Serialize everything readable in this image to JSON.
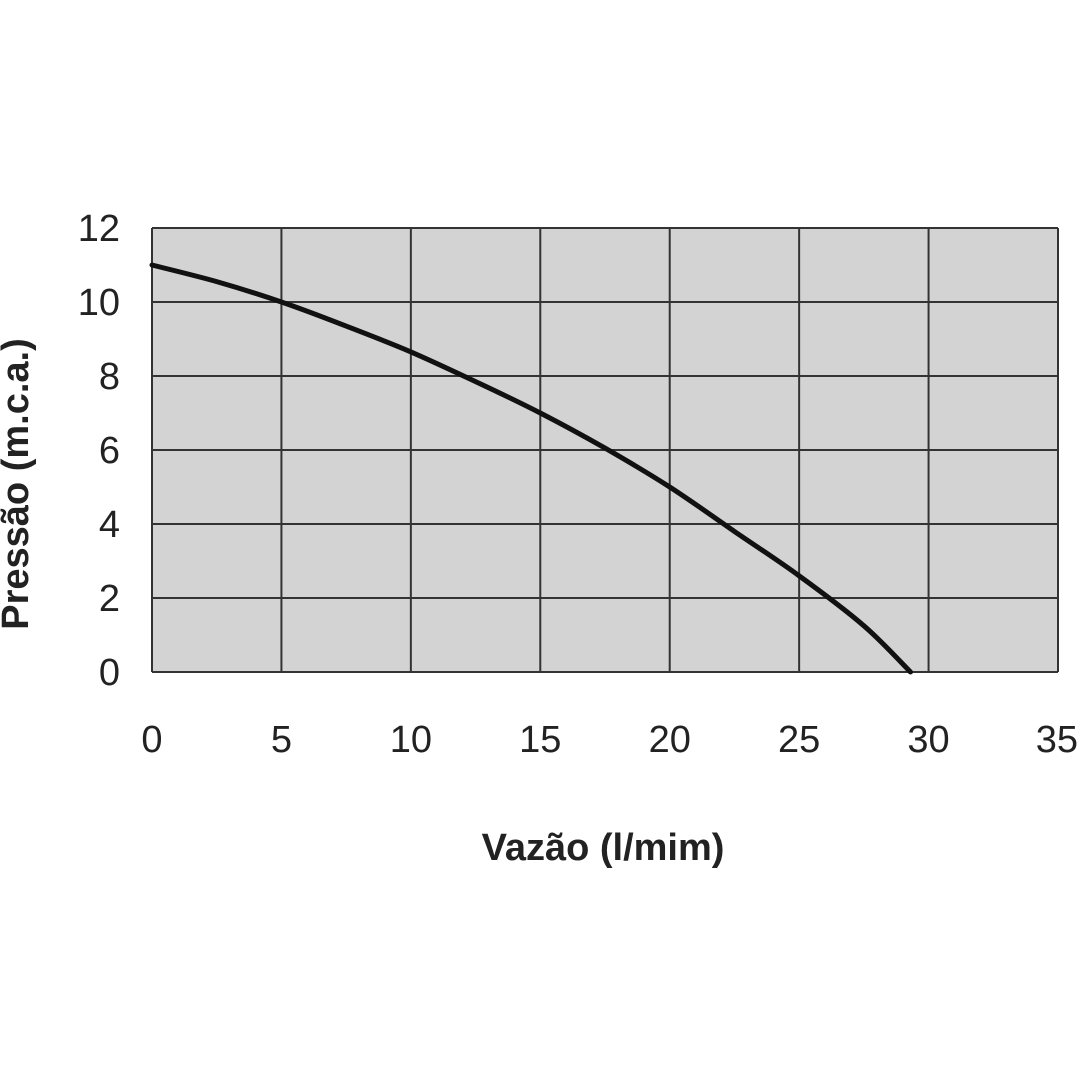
{
  "chart_data": {
    "type": "line",
    "title": "",
    "xlabel": "Vazão (l/mim)",
    "ylabel": "Pressão (m.c.a.)",
    "xlim": [
      0,
      35
    ],
    "ylim": [
      0,
      12
    ],
    "xticks": [
      "0",
      "5",
      "10",
      "15",
      "20",
      "25",
      "30",
      "35"
    ],
    "yticks": [
      "0",
      "2",
      "4",
      "6",
      "8",
      "10",
      "12"
    ],
    "grid": true,
    "series": [
      {
        "x": [
          0,
          2.5,
          5,
          7.5,
          10,
          12.5,
          15,
          17.5,
          20,
          22.5,
          25,
          27.5,
          29.3
        ],
        "y": [
          11.0,
          10.55,
          10.0,
          9.35,
          8.65,
          7.85,
          7.0,
          6.05,
          5.0,
          3.8,
          2.6,
          1.25,
          0.0
        ]
      }
    ],
    "colors": {
      "plot_background": "#d3d3d3",
      "grid": "#333333",
      "line": "#111111"
    }
  }
}
